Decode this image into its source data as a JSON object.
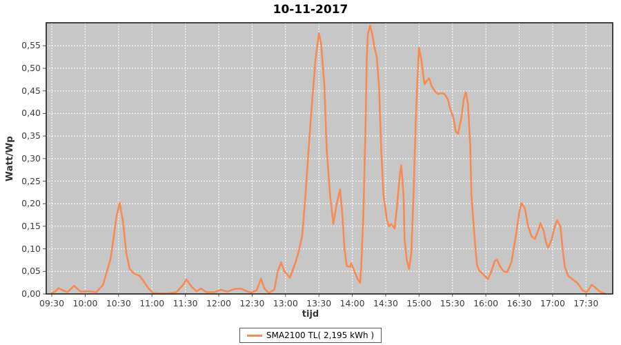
{
  "title": "10-11-2017",
  "colors": {
    "series": "#F98B52",
    "plot_bg": "#C7C7C7",
    "grid": "#FFFFFF",
    "plot_border": "#1a1a1a",
    "tick_mark": "#555555",
    "tick_label": "#3c3c3c",
    "axis_label": "#333333"
  },
  "legend": {
    "label": "SMA2100 TL( 2,195 kWh )"
  },
  "chart_data": {
    "type": "line",
    "title": "10-11-2017",
    "xlabel": "tijd",
    "ylabel": "Watt/Wp",
    "grid": true,
    "legend_position": "bottom",
    "ylim": [
      0,
      0.601
    ],
    "xlim_time": [
      "09:25",
      "17:54"
    ],
    "x_ticks": [
      "09:30",
      "10:00",
      "10:30",
      "11:00",
      "11:30",
      "12:00",
      "12:30",
      "13:00",
      "13:30",
      "14:00",
      "14:30",
      "15:00",
      "15:30",
      "16:00",
      "16:30",
      "17:00",
      "17:30"
    ],
    "y_ticks": [
      [
        0.0,
        "0,00"
      ],
      [
        0.05,
        "0,05"
      ],
      [
        0.1,
        "0,10"
      ],
      [
        0.15,
        "0,15"
      ],
      [
        0.2,
        "0,20"
      ],
      [
        0.25,
        "0,25"
      ],
      [
        0.3,
        "0,30"
      ],
      [
        0.35,
        "0,35"
      ],
      [
        0.4,
        "0,40"
      ],
      [
        0.45,
        "0,45"
      ],
      [
        0.5,
        "0,50"
      ],
      [
        0.55,
        "0,55"
      ]
    ],
    "series": [
      {
        "name": "SMA2100 TL( 2,195 kWh )",
        "points": [
          [
            "09:30",
            0.002
          ],
          [
            "09:33",
            0.005
          ],
          [
            "09:36",
            0.013
          ],
          [
            "09:40",
            0.008
          ],
          [
            "09:44",
            0.004
          ],
          [
            "09:50",
            0.018
          ],
          [
            "09:56",
            0.005
          ],
          [
            "10:03",
            0.006
          ],
          [
            "10:10",
            0.004
          ],
          [
            "10:16",
            0.02
          ],
          [
            "10:23",
            0.08
          ],
          [
            "10:28",
            0.17
          ],
          [
            "10:31",
            0.202
          ],
          [
            "10:34",
            0.16
          ],
          [
            "10:37",
            0.09
          ],
          [
            "10:40",
            0.055
          ],
          [
            "10:44",
            0.045
          ],
          [
            "10:49",
            0.04
          ],
          [
            "10:52",
            0.03
          ],
          [
            "10:57",
            0.012
          ],
          [
            "11:01",
            0.002
          ],
          [
            "11:08",
            0.001
          ],
          [
            "11:15",
            0.001
          ],
          [
            "11:22",
            0.004
          ],
          [
            "11:28",
            0.02
          ],
          [
            "11:31",
            0.032
          ],
          [
            "11:36",
            0.015
          ],
          [
            "11:40",
            0.006
          ],
          [
            "11:44",
            0.012
          ],
          [
            "11:49",
            0.004
          ],
          [
            "11:56",
            0.004
          ],
          [
            "12:02",
            0.009
          ],
          [
            "12:08",
            0.005
          ],
          [
            "12:14",
            0.011
          ],
          [
            "12:20",
            0.012
          ],
          [
            "12:25",
            0.006
          ],
          [
            "12:29",
            0.003
          ],
          [
            "12:34",
            0.008
          ],
          [
            "12:38",
            0.034
          ],
          [
            "12:41",
            0.012
          ],
          [
            "12:45",
            0.002
          ],
          [
            "12:50",
            0.01
          ],
          [
            "12:53",
            0.05
          ],
          [
            "12:56",
            0.07
          ],
          [
            "12:59",
            0.05
          ],
          [
            "13:04",
            0.036
          ],
          [
            "13:09",
            0.07
          ],
          [
            "13:12",
            0.095
          ],
          [
            "13:15",
            0.13
          ],
          [
            "13:18",
            0.22
          ],
          [
            "13:21",
            0.33
          ],
          [
            "13:24",
            0.43
          ],
          [
            "13:27",
            0.52
          ],
          [
            "13:30",
            0.578
          ],
          [
            "13:32",
            0.555
          ],
          [
            "13:35",
            0.46
          ],
          [
            "13:37",
            0.32
          ],
          [
            "13:40",
            0.22
          ],
          [
            "13:43",
            0.155
          ],
          [
            "13:46",
            0.2
          ],
          [
            "13:49",
            0.232
          ],
          [
            "13:51",
            0.18
          ],
          [
            "13:53",
            0.1
          ],
          [
            "13:55",
            0.062
          ],
          [
            "13:58",
            0.06
          ],
          [
            "13:59",
            0.068
          ],
          [
            "14:02",
            0.05
          ],
          [
            "14:05",
            0.032
          ],
          [
            "14:07",
            0.025
          ],
          [
            "14:08",
            0.06
          ],
          [
            "14:10",
            0.18
          ],
          [
            "14:12",
            0.38
          ],
          [
            "14:13",
            0.52
          ],
          [
            "14:14",
            0.575
          ],
          [
            "14:16",
            0.595
          ],
          [
            "14:18",
            0.575
          ],
          [
            "14:20",
            0.545
          ],
          [
            "14:22",
            0.525
          ],
          [
            "14:24",
            0.46
          ],
          [
            "14:26",
            0.32
          ],
          [
            "14:28",
            0.22
          ],
          [
            "14:31",
            0.165
          ],
          [
            "14:33",
            0.15
          ],
          [
            "14:35",
            0.155
          ],
          [
            "14:38",
            0.145
          ],
          [
            "14:40",
            0.19
          ],
          [
            "14:43",
            0.27
          ],
          [
            "14:44",
            0.285
          ],
          [
            "14:46",
            0.22
          ],
          [
            "14:47",
            0.12
          ],
          [
            "14:49",
            0.075
          ],
          [
            "14:51",
            0.055
          ],
          [
            "14:53",
            0.09
          ],
          [
            "14:55",
            0.22
          ],
          [
            "14:57",
            0.38
          ],
          [
            "14:59",
            0.5
          ],
          [
            "15:00",
            0.545
          ],
          [
            "15:02",
            0.52
          ],
          [
            "15:04",
            0.48
          ],
          [
            "15:05",
            0.465
          ],
          [
            "15:07",
            0.472
          ],
          [
            "15:09",
            0.478
          ],
          [
            "15:11",
            0.462
          ],
          [
            "15:14",
            0.45
          ],
          [
            "15:17",
            0.443
          ],
          [
            "15:20",
            0.445
          ],
          [
            "15:23",
            0.443
          ],
          [
            "15:26",
            0.43
          ],
          [
            "15:28",
            0.41
          ],
          [
            "15:31",
            0.39
          ],
          [
            "15:33",
            0.36
          ],
          [
            "15:35",
            0.355
          ],
          [
            "15:38",
            0.39
          ],
          [
            "15:40",
            0.43
          ],
          [
            "15:42",
            0.447
          ],
          [
            "15:44",
            0.42
          ],
          [
            "15:46",
            0.33
          ],
          [
            "15:47",
            0.22
          ],
          [
            "15:50",
            0.12
          ],
          [
            "15:52",
            0.065
          ],
          [
            "15:54",
            0.052
          ],
          [
            "15:57",
            0.045
          ],
          [
            "16:00",
            0.038
          ],
          [
            "16:02",
            0.033
          ],
          [
            "16:05",
            0.05
          ],
          [
            "16:08",
            0.073
          ],
          [
            "16:10",
            0.076
          ],
          [
            "16:13",
            0.06
          ],
          [
            "16:16",
            0.05
          ],
          [
            "16:19",
            0.048
          ],
          [
            "16:23",
            0.07
          ],
          [
            "16:27",
            0.13
          ],
          [
            "16:30",
            0.18
          ],
          [
            "16:32",
            0.201
          ],
          [
            "16:35",
            0.19
          ],
          [
            "16:38",
            0.15
          ],
          [
            "16:41",
            0.128
          ],
          [
            "16:44",
            0.122
          ],
          [
            "16:47",
            0.14
          ],
          [
            "16:49",
            0.157
          ],
          [
            "16:52",
            0.14
          ],
          [
            "16:54",
            0.115
          ],
          [
            "16:56",
            0.102
          ],
          [
            "16:59",
            0.12
          ],
          [
            "17:02",
            0.15
          ],
          [
            "17:04",
            0.163
          ],
          [
            "17:07",
            0.15
          ],
          [
            "17:09",
            0.1
          ],
          [
            "17:11",
            0.06
          ],
          [
            "17:14",
            0.04
          ],
          [
            "17:18",
            0.032
          ],
          [
            "17:22",
            0.025
          ],
          [
            "17:25",
            0.015
          ],
          [
            "17:27",
            0.008
          ],
          [
            "17:30",
            0.004
          ],
          [
            "17:32",
            0.008
          ],
          [
            "17:35",
            0.02
          ],
          [
            "17:38",
            0.015
          ],
          [
            "17:41",
            0.008
          ],
          [
            "17:44",
            0.003
          ],
          [
            "17:47",
            0.001
          ]
        ]
      }
    ]
  }
}
